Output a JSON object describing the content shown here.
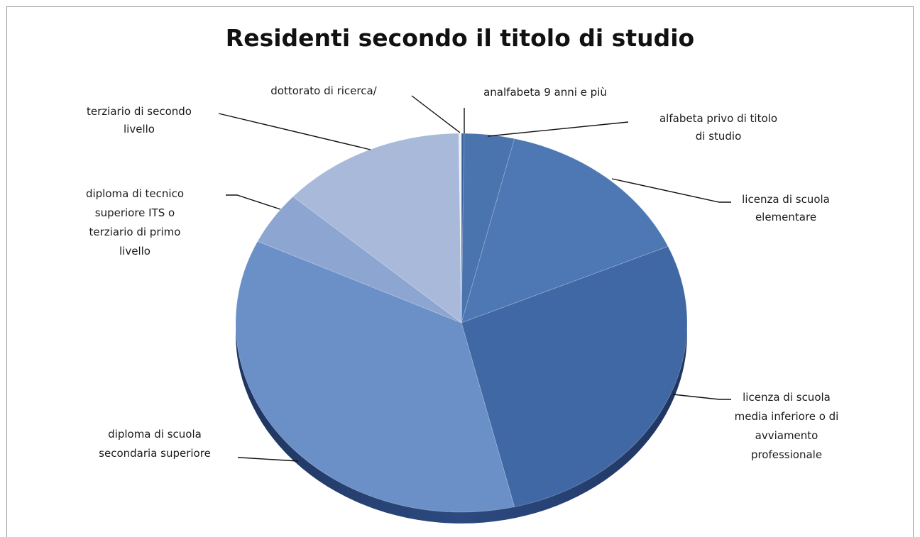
{
  "chart_data": {
    "type": "pie",
    "title": "Residenti secondo il titolo di studio",
    "colors": [
      "#3a5f99",
      "#4a74ad",
      "#4e78b4",
      "#3f68a4",
      "#6b8fc7",
      "#8ca5d1",
      "#a8b9da",
      "#eef1f7"
    ],
    "slices": [
      {
        "label": "analfabeta 9 anni e più",
        "value": 0.2
      },
      {
        "label": "alfabeta privo di titolo di studio",
        "value": 3.8
      },
      {
        "label": "licenza di scuola elementare",
        "value": 15.5
      },
      {
        "label": "licenza di scuola media inferiore o di avviamento professionale",
        "value": 29.5
      },
      {
        "label": "diploma di scuola secondaria superiore",
        "value": 38.0
      },
      {
        "label": "diploma di tecnico superiore ITS o terziario di primo livello",
        "value": 4.8
      },
      {
        "label": "terziario di secondo livello",
        "value": 14.0
      },
      {
        "label": "dottorato di ricerca/",
        "value": 0.2
      }
    ]
  },
  "labels": {
    "analfabeta": [
      "analfabeta 9 anni e più"
    ],
    "alfabeta": [
      "alfabeta privo di titolo",
      "di studio"
    ],
    "elementare": [
      "licenza di scuola",
      "elementare"
    ],
    "media": [
      "licenza di scuola",
      "media inferiore o di",
      "avviamento",
      "professionale"
    ],
    "secondaria": [
      "diploma di scuola",
      "secondaria superiore"
    ],
    "its": [
      "diploma di tecnico",
      "superiore ITS o",
      "terziario di primo",
      "livello"
    ],
    "terziario2": [
      "terziario di secondo",
      "livello"
    ],
    "dottorato": [
      "dottorato di ricerca/"
    ]
  }
}
